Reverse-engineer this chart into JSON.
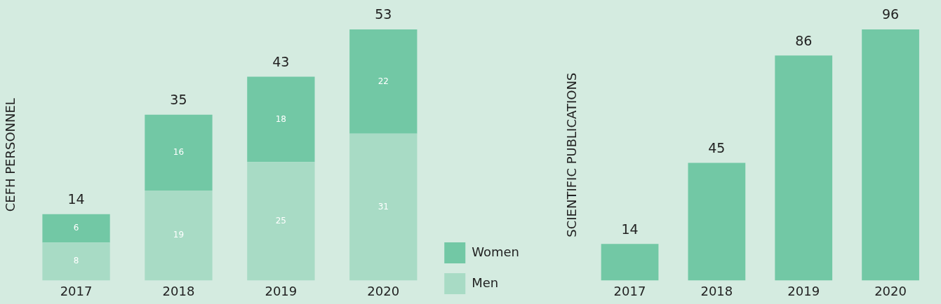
{
  "chart_data": [
    {
      "type": "bar",
      "stacked": true,
      "ylabel": "CEFH PERSONNEL",
      "categories": [
        "2017",
        "2018",
        "2019",
        "2020"
      ],
      "series": [
        {
          "name": "Men",
          "color": "#a8dbc5",
          "values": [
            8,
            19,
            25,
            31
          ]
        },
        {
          "name": "Women",
          "color": "#72c8a5",
          "values": [
            6,
            16,
            18,
            22
          ]
        }
      ],
      "data_labels": true,
      "totals": [
        "14",
        "35",
        "43",
        "53"
      ],
      "legend": "bottom right",
      "grid": false
    },
    {
      "type": "bar",
      "ylabel": "SCIENTIFIC PUBLICATIONS",
      "categories": [
        "2017",
        "2018",
        "2019",
        "2020"
      ],
      "series": [
        {
          "color": "#72c8a5",
          "values": [
            14,
            45,
            86,
            96
          ]
        }
      ],
      "data_labels": true,
      "grid": false
    }
  ]
}
